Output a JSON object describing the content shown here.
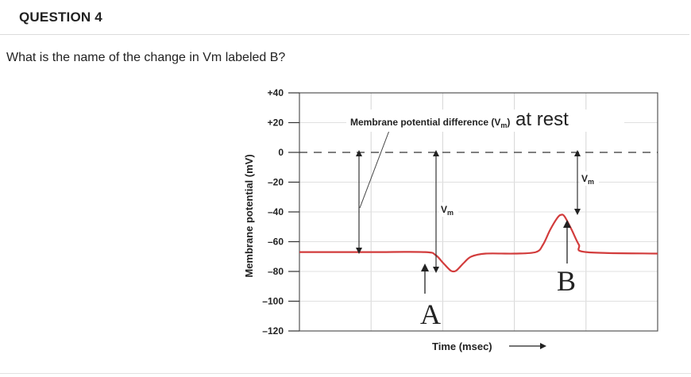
{
  "question": {
    "title": "QUESTION 4",
    "prompt": "What is the name of the change in Vm labeled B?"
  },
  "figure": {
    "ylabel": "Membrane potential (mV)",
    "xlabel": "Time (msec)",
    "annotation_main": "Membrane potential difference (V",
    "annotation_sub": "m",
    "annotation_close": ")",
    "annotation_suffix": " at rest",
    "vm_main": "V",
    "vm_sub": "m",
    "label_a": "A",
    "label_b": "B",
    "curve_color": "#d23c3c",
    "tick_labels": [
      "+40",
      "+20",
      "0",
      "–20",
      "–40",
      "–60",
      "–80",
      "–100",
      "–120"
    ]
  },
  "chart_data": {
    "type": "line",
    "title": "",
    "xlabel": "Time (msec)",
    "ylabel": "Membrane potential (mV)",
    "ylim": [
      -120,
      40
    ],
    "yticks": [
      40,
      20,
      0,
      -20,
      -40,
      -60,
      -80,
      -100,
      -120
    ],
    "grid": true,
    "series": [
      {
        "name": "",
        "points": [
          [
            0,
            -67
          ],
          [
            20,
            -67
          ],
          [
            35,
            -67
          ],
          [
            38,
            -69
          ],
          [
            40,
            -74
          ],
          [
            42,
            -79
          ],
          [
            43,
            -80
          ],
          [
            44,
            -79
          ],
          [
            46,
            -74
          ],
          [
            48,
            -70
          ],
          [
            52,
            -68
          ],
          [
            60,
            -68
          ],
          [
            66,
            -67
          ],
          [
            68,
            -62
          ],
          [
            70,
            -52
          ],
          [
            72,
            -44
          ],
          [
            73,
            -42
          ],
          [
            74,
            -43
          ],
          [
            76,
            -52
          ],
          [
            78,
            -62
          ],
          [
            80,
            -67
          ],
          [
            100,
            -68
          ]
        ]
      }
    ]
  }
}
